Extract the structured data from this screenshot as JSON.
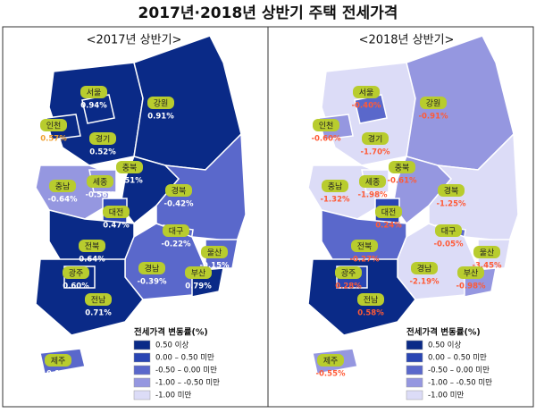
{
  "title": "2017년·2018년 상반기 주택 전세가격",
  "legend": {
    "title": "전세가격 변동률(%)",
    "items": [
      {
        "label": "0.50 이상",
        "color": "#0a2a87"
      },
      {
        "label": "0.00 – 0.50 미만",
        "color": "#2945b3"
      },
      {
        "label": "-0.50 – 0.00 미만",
        "color": "#5a68cb"
      },
      {
        "label": "-1.00 – -0.50 미만",
        "color": "#9597e0"
      },
      {
        "label": "-1.00 미만",
        "color": "#dcdcf7"
      }
    ]
  },
  "maps": [
    {
      "subtitle": "<2017년 상반기>",
      "value_color": "#ffffff",
      "regions": [
        {
          "name": "경기",
          "value": "0.52%",
          "color": "#0a2a87"
        },
        {
          "name": "강원",
          "value": "0.91%",
          "color": "#0a2a87"
        },
        {
          "name": "서울",
          "value": "0.94%",
          "color": "#0a2a87"
        },
        {
          "name": "인천",
          "value": "0.57%",
          "color": "#0a2a87",
          "value_color": "#f0a030"
        },
        {
          "name": "충북",
          "value": "0.51%",
          "color": "#0a2a87"
        },
        {
          "name": "충남",
          "value": "-0.64%",
          "color": "#9597e0"
        },
        {
          "name": "세종",
          "value": "-0.56%",
          "color": "#9597e0"
        },
        {
          "name": "대전",
          "value": "0.47%",
          "color": "#2945b3"
        },
        {
          "name": "경북",
          "value": "-0.42%",
          "color": "#5a68cb"
        },
        {
          "name": "전북",
          "value": "0.64%",
          "color": "#0a2a87"
        },
        {
          "name": "대구",
          "value": "-0.22%",
          "color": "#5a68cb"
        },
        {
          "name": "경남",
          "value": "-0.39%",
          "color": "#5a68cb"
        },
        {
          "name": "울산",
          "value": "-0.15%",
          "color": "#5a68cb"
        },
        {
          "name": "부산",
          "value": "0.79%",
          "color": "#0a2a87"
        },
        {
          "name": "전남",
          "value": "0.71%",
          "color": "#0a2a87"
        },
        {
          "name": "광주",
          "value": "0.60%",
          "color": "#0a2a87"
        },
        {
          "name": "제주",
          "value": "-0.10%",
          "color": "#5a68cb"
        }
      ]
    },
    {
      "subtitle": "<2018년 상반기>",
      "value_color": "#ff5a36",
      "regions": [
        {
          "name": "경기",
          "value": "-1.70%",
          "color": "#dcdcf7"
        },
        {
          "name": "강원",
          "value": "-0.91%",
          "color": "#9597e0"
        },
        {
          "name": "서울",
          "value": "-0.40%",
          "color": "#5a68cb"
        },
        {
          "name": "인천",
          "value": "-0.60%",
          "color": "#9597e0"
        },
        {
          "name": "충북",
          "value": "-0.61%",
          "color": "#9597e0"
        },
        {
          "name": "충남",
          "value": "-1.32%",
          "color": "#dcdcf7"
        },
        {
          "name": "세종",
          "value": "-1.98%",
          "color": "#dcdcf7"
        },
        {
          "name": "대전",
          "value": "0.24%",
          "color": "#2945b3"
        },
        {
          "name": "경북",
          "value": "-1.25%",
          "color": "#dcdcf7"
        },
        {
          "name": "전북",
          "value": "-0.27%",
          "color": "#5a68cb"
        },
        {
          "name": "대구",
          "value": "-0.05%",
          "color": "#5a68cb"
        },
        {
          "name": "경남",
          "value": "-2.19%",
          "color": "#dcdcf7"
        },
        {
          "name": "울산",
          "value": "-3.45%",
          "color": "#dcdcf7"
        },
        {
          "name": "부산",
          "value": "-0.98%",
          "color": "#9597e0"
        },
        {
          "name": "전남",
          "value": "0.58%",
          "color": "#0a2a87"
        },
        {
          "name": "광주",
          "value": "0.28%",
          "color": "#2945b3"
        },
        {
          "name": "제주",
          "value": "-0.55%",
          "color": "#9597e0"
        }
      ]
    }
  ]
}
